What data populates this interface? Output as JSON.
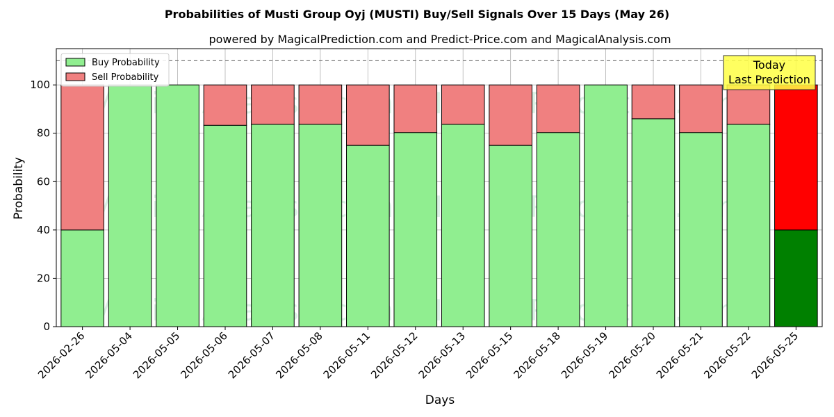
{
  "chart_data": {
    "type": "bar",
    "stacked": true,
    "title": "Probabilities of Musti Group Oyj (MUSTI) Buy/Sell Signals Over 15 Days (May 26)",
    "subtitle": "powered by MagicalPrediction.com and Predict-Price.com and MagicalAnalysis.com",
    "xlabel": "Days",
    "ylabel": "Probability",
    "ylim": [
      0,
      115
    ],
    "yticks": [
      0,
      20,
      40,
      60,
      80,
      100
    ],
    "reference_line": 110,
    "grid": true,
    "legend_position": "top-left",
    "categories": [
      "2026-02-26",
      "2026-05-04",
      "2026-05-05",
      "2026-05-06",
      "2026-05-07",
      "2026-05-08",
      "2026-05-11",
      "2026-05-12",
      "2026-05-13",
      "2026-05-15",
      "2026-05-18",
      "2026-05-19",
      "2026-05-20",
      "2026-05-21",
      "2026-05-22",
      "2026-05-25"
    ],
    "series": [
      {
        "name": "Buy Probability",
        "color": "#90ee90",
        "highlight_color": "#008000",
        "values": [
          40,
          100,
          100,
          83.3,
          83.7,
          83.7,
          75,
          80.3,
          83.7,
          75,
          80.3,
          100,
          86,
          80.3,
          83.7,
          40
        ]
      },
      {
        "name": "Sell Probability",
        "color": "#f08080",
        "highlight_color": "#ff0000",
        "values": [
          60,
          0,
          0,
          16.7,
          16.3,
          16.3,
          25,
          19.7,
          16.3,
          25,
          19.7,
          0,
          14,
          19.7,
          16.3,
          60
        ]
      }
    ],
    "annotation": {
      "lines": [
        "Today",
        "Last Prediction"
      ],
      "color": "#ffff44"
    },
    "watermarks": [
      "MagicalAnalysis.com",
      "MagicalPrediction.com"
    ]
  }
}
